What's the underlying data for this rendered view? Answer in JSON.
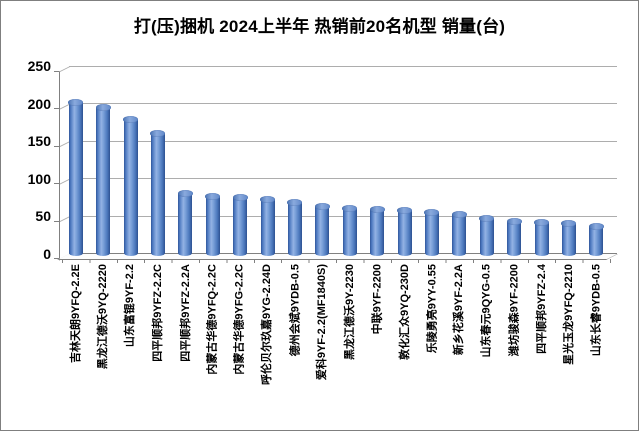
{
  "chart_data": {
    "type": "bar",
    "subtype": "3d-cylinder",
    "title": "打(压)捆机 2024上半年 热销前20名机型 销量(台)",
    "unit": "台",
    "categories": [
      "吉林天朗9YFQ-2.2E",
      "黑龙江德沃9YQ-2220",
      "山东富锟9YF-2.2",
      "四平顺邦9YFZ-2.2C",
      "四平顺邦9YFZ-2.2A",
      "内蒙古华德9YFQ-2.2C",
      "内蒙古华德9YFG-2.2C",
      "呼伦贝尔玖嘉9YG-2.24D",
      "德州会斌9YDB-0.5",
      "爱科9YF-2.2(MF1840S)",
      "黑龙江德沃9Y-2230",
      "中联9YF-2200",
      "敦化汇众9YQ-230D",
      "乐陵勇亮9YY-0.55",
      "新乡花溪9YF-2.2A",
      "山东春元9QYG-0.5",
      "潍坊骏森9YF-2200",
      "四平顺邦9YFZ-2.4",
      "星光玉龙9YFQ-2210",
      "山东长睿9YDB-0.5"
    ],
    "values": [
      205,
      198,
      182,
      164,
      84,
      80,
      78,
      76,
      72,
      66,
      63,
      62,
      61,
      58,
      56,
      50,
      46,
      45,
      43,
      40
    ],
    "xlabel": "",
    "ylabel": "",
    "ylim": [
      0,
      250
    ],
    "yticks": [
      0,
      50,
      100,
      150,
      200,
      250
    ],
    "grid": true,
    "legend": false,
    "bar_color": "#4472C4",
    "gridline_color": "#adadad",
    "axis_color": "#808080",
    "background": "#ffffff"
  }
}
